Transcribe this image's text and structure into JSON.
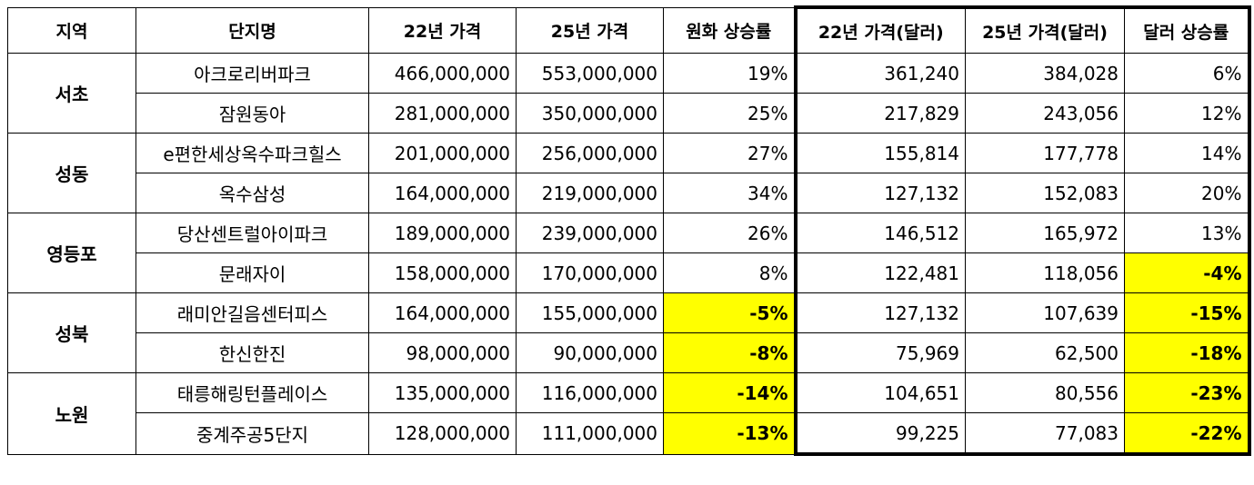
{
  "table": {
    "headers": [
      "지역",
      "단지명",
      "22년 가격",
      "25년 가격",
      "원화 상승률",
      "22년 가격(달러)",
      "25년 가격(달러)",
      "달러 상승률"
    ],
    "groups": [
      {
        "region": "서초",
        "rows": [
          {
            "complex": "아크로리버파크",
            "krw22": "466,000,000",
            "krw25": "553,000,000",
            "krw_rate": "19%",
            "usd22": "361,240",
            "usd25": "384,028",
            "usd_rate": "6%",
            "krw_hl": false,
            "usd_hl": false
          },
          {
            "complex": "잠원동아",
            "krw22": "281,000,000",
            "krw25": "350,000,000",
            "krw_rate": "25%",
            "usd22": "217,829",
            "usd25": "243,056",
            "usd_rate": "12%",
            "krw_hl": false,
            "usd_hl": false
          }
        ]
      },
      {
        "region": "성동",
        "rows": [
          {
            "complex": "e편한세상옥수파크힐스",
            "krw22": "201,000,000",
            "krw25": "256,000,000",
            "krw_rate": "27%",
            "usd22": "155,814",
            "usd25": "177,778",
            "usd_rate": "14%",
            "krw_hl": false,
            "usd_hl": false
          },
          {
            "complex": "옥수삼성",
            "krw22": "164,000,000",
            "krw25": "219,000,000",
            "krw_rate": "34%",
            "usd22": "127,132",
            "usd25": "152,083",
            "usd_rate": "20%",
            "krw_hl": false,
            "usd_hl": false
          }
        ]
      },
      {
        "region": "영등포",
        "rows": [
          {
            "complex": "당산센트럴아이파크",
            "krw22": "189,000,000",
            "krw25": "239,000,000",
            "krw_rate": "26%",
            "usd22": "146,512",
            "usd25": "165,972",
            "usd_rate": "13%",
            "krw_hl": false,
            "usd_hl": false
          },
          {
            "complex": "문래자이",
            "krw22": "158,000,000",
            "krw25": "170,000,000",
            "krw_rate": "8%",
            "usd22": "122,481",
            "usd25": "118,056",
            "usd_rate": "-4%",
            "krw_hl": false,
            "usd_hl": true
          }
        ]
      },
      {
        "region": "성북",
        "rows": [
          {
            "complex": "래미안길음센터피스",
            "krw22": "164,000,000",
            "krw25": "155,000,000",
            "krw_rate": "-5%",
            "usd22": "127,132",
            "usd25": "107,639",
            "usd_rate": "-15%",
            "krw_hl": true,
            "usd_hl": true
          },
          {
            "complex": "한신한진",
            "krw22": "98,000,000",
            "krw25": "90,000,000",
            "krw_rate": "-8%",
            "usd22": "75,969",
            "usd25": "62,500",
            "usd_rate": "-18%",
            "krw_hl": true,
            "usd_hl": true
          }
        ]
      },
      {
        "region": "노원",
        "rows": [
          {
            "complex": "태릉해링턴플레이스",
            "krw22": "135,000,000",
            "krw25": "116,000,000",
            "krw_rate": "-14%",
            "usd22": "104,651",
            "usd25": "80,556",
            "usd_rate": "-23%",
            "krw_hl": true,
            "usd_hl": true
          },
          {
            "complex": "중계주공5단지",
            "krw22": "128,000,000",
            "krw25": "111,000,000",
            "krw_rate": "-13%",
            "usd22": "99,225",
            "usd25": "77,083",
            "usd_rate": "-22%",
            "krw_hl": true,
            "usd_hl": true
          }
        ]
      }
    ]
  },
  "colors": {
    "highlight": "#ffff00",
    "border": "#000000",
    "background": "#ffffff"
  }
}
